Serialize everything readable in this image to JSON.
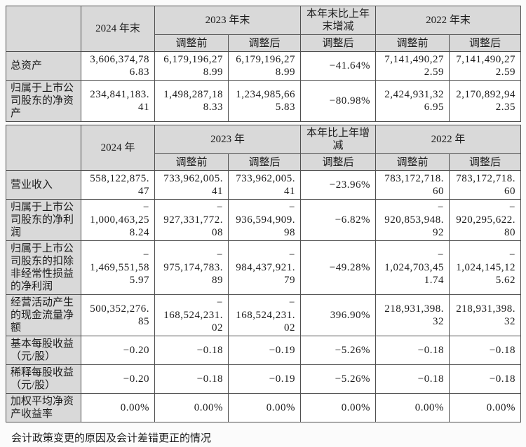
{
  "colors": {
    "page_bg": "#fbfbfb",
    "header_bg": "#d9d9d9",
    "border": "#4f4f4f",
    "text": "#1c1c1c",
    "cell_bg": "#ffffff"
  },
  "table1": {
    "header": {
      "corner": "",
      "col_2024": "2024 年末",
      "col_2023": "2023 年末",
      "col_change": "本年末比上年末增减",
      "col_2022": "2022 年末",
      "sub": [
        "调整前",
        "调整后",
        "调整后",
        "调整前",
        "调整后"
      ]
    },
    "rows": [
      {
        "label": "总资产",
        "cells": [
          "3,606,374,78\n6.83",
          "6,179,196,27\n8.99",
          "6,179,196,27\n8.99",
          "−41.64%",
          "7,141,490,27\n2.59",
          "7,141,490,27\n2.59"
        ]
      },
      {
        "label": "归属于上市公司股东的净资产",
        "cells": [
          "234,841,183.\n41",
          "1,498,287,18\n8.33",
          "1,234,985,66\n5.83",
          "−80.98%",
          "2,424,931,32\n6.95",
          "2,170,892,94\n2.35"
        ]
      }
    ]
  },
  "table2": {
    "header": {
      "corner": "",
      "col_2024": "2024 年",
      "col_2023": "2023 年",
      "col_change": "本年比上年增减",
      "col_2022": "2022 年",
      "sub": [
        "调整前",
        "调整后",
        "调整后",
        "调整前",
        "调整后"
      ]
    },
    "rows": [
      {
        "label": "营业收入",
        "cells": [
          "558,122,875.\n47",
          "733,962,005.\n41",
          "733,962,005.\n41",
          "−23.96%",
          "783,172,718.\n60",
          "783,172,718.\n60"
        ]
      },
      {
        "label": "归属于上市公司股东的净利润",
        "cells": [
          "−\n1,000,463,25\n8.24",
          "−\n927,331,772.\n08",
          "−\n936,594,909.\n98",
          "−6.82%",
          "−\n920,853,948.\n92",
          "−\n920,295,622.\n80"
        ]
      },
      {
        "label": "归属于上市公司股东的扣除非经常性损益的净利润",
        "cells": [
          "−\n1,469,551,58\n5.97",
          "−\n975,174,783.\n89",
          "−\n984,437,921.\n79",
          "−49.28%",
          "−\n1,024,703,45\n1.74",
          "−\n1,024,145,12\n5.62"
        ]
      },
      {
        "label": "经营活动产生的现金流量净额",
        "cells": [
          "500,352,276.\n85",
          "−\n168,524,231.\n02",
          "−\n168,524,231.\n02",
          "396.90%",
          "218,931,398.\n32",
          "218,931,398.\n32"
        ]
      },
      {
        "label": "基本每股收益（元/股）",
        "cells": [
          "−0.20",
          "−0.18",
          "−0.19",
          "−5.26%",
          "−0.18",
          "−0.18"
        ]
      },
      {
        "label": "稀释每股收益（元/股）",
        "cells": [
          "−0.20",
          "−0.18",
          "−0.19",
          "−5.26%",
          "−0.18",
          "−0.18"
        ]
      },
      {
        "label": "加权平均净资产收益率",
        "cells": [
          "0.00%",
          "0.00%",
          "0.00%",
          "0.00%",
          "0.00%",
          "0.00%"
        ]
      }
    ]
  },
  "footer": {
    "caption": "会计政策变更的原因及会计差错更正的情况"
  }
}
